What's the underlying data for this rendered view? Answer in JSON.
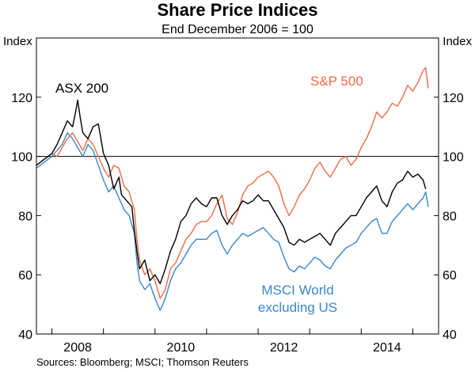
{
  "chart_data": {
    "type": "line",
    "title": "Share Price Indices",
    "subtitle": "End December 2006 = 100",
    "ylabel_left": "Index",
    "ylabel_right": "Index",
    "source": "Sources: Bloomberg; MSCI; Thomson Reuters",
    "xlim": [
      2006.7,
      2014.5
    ],
    "ylim": [
      40,
      140
    ],
    "x_ticks": [
      2008,
      2010,
      2012,
      2014
    ],
    "y_ticks": [
      40,
      60,
      80,
      100,
      120
    ],
    "reference_line": 100,
    "grid": false,
    "series": [
      {
        "name": "ASX 200",
        "color": "#000000",
        "points": [
          [
            2006.7,
            97
          ],
          [
            2006.85,
            99
          ],
          [
            2007.0,
            101
          ],
          [
            2007.1,
            104
          ],
          [
            2007.2,
            108
          ],
          [
            2007.3,
            112
          ],
          [
            2007.4,
            110
          ],
          [
            2007.45,
            114
          ],
          [
            2007.5,
            119
          ],
          [
            2007.55,
            113
          ],
          [
            2007.6,
            108
          ],
          [
            2007.7,
            106
          ],
          [
            2007.8,
            110
          ],
          [
            2007.9,
            111
          ],
          [
            2008.0,
            101
          ],
          [
            2008.1,
            97
          ],
          [
            2008.2,
            89
          ],
          [
            2008.3,
            93
          ],
          [
            2008.35,
            87
          ],
          [
            2008.45,
            85
          ],
          [
            2008.55,
            83
          ],
          [
            2008.6,
            75
          ],
          [
            2008.65,
            68
          ],
          [
            2008.7,
            62
          ],
          [
            2008.8,
            65
          ],
          [
            2008.9,
            58
          ],
          [
            2009.0,
            60
          ],
          [
            2009.1,
            57
          ],
          [
            2009.2,
            62
          ],
          [
            2009.3,
            68
          ],
          [
            2009.4,
            72
          ],
          [
            2009.5,
            78
          ],
          [
            2009.6,
            80
          ],
          [
            2009.7,
            84
          ],
          [
            2009.8,
            86
          ],
          [
            2009.9,
            84
          ],
          [
            2010.0,
            83
          ],
          [
            2010.1,
            86
          ],
          [
            2010.2,
            86
          ],
          [
            2010.3,
            80
          ],
          [
            2010.4,
            77
          ],
          [
            2010.5,
            80
          ],
          [
            2010.6,
            82
          ],
          [
            2010.7,
            85
          ],
          [
            2010.8,
            84
          ],
          [
            2010.9,
            85
          ],
          [
            2011.0,
            87
          ],
          [
            2011.1,
            85
          ],
          [
            2011.2,
            85
          ],
          [
            2011.3,
            82
          ],
          [
            2011.4,
            79
          ],
          [
            2011.5,
            76
          ],
          [
            2011.6,
            71
          ],
          [
            2011.7,
            70
          ],
          [
            2011.8,
            72
          ],
          [
            2011.9,
            71
          ],
          [
            2012.0,
            72
          ],
          [
            2012.1,
            73
          ],
          [
            2012.2,
            74
          ],
          [
            2012.3,
            72
          ],
          [
            2012.4,
            70
          ],
          [
            2012.5,
            74
          ],
          [
            2012.6,
            76
          ],
          [
            2012.7,
            78
          ],
          [
            2012.8,
            80
          ],
          [
            2012.9,
            80
          ],
          [
            2013.0,
            83
          ],
          [
            2013.1,
            86
          ],
          [
            2013.2,
            88
          ],
          [
            2013.3,
            90
          ],
          [
            2013.4,
            85
          ],
          [
            2013.5,
            83
          ],
          [
            2013.6,
            88
          ],
          [
            2013.7,
            91
          ],
          [
            2013.8,
            92
          ],
          [
            2013.9,
            95
          ],
          [
            2014.0,
            93
          ],
          [
            2014.1,
            94
          ],
          [
            2014.2,
            92
          ],
          [
            2014.25,
            89
          ]
        ]
      },
      {
        "name": "S&P 500",
        "color": "#f26b48",
        "points": [
          [
            2006.7,
            97
          ],
          [
            2006.85,
            99
          ],
          [
            2007.0,
            101
          ],
          [
            2007.1,
            100
          ],
          [
            2007.2,
            103
          ],
          [
            2007.3,
            106
          ],
          [
            2007.4,
            108
          ],
          [
            2007.5,
            105
          ],
          [
            2007.6,
            102
          ],
          [
            2007.7,
            106
          ],
          [
            2007.8,
            104
          ],
          [
            2007.9,
            100
          ],
          [
            2008.0,
            96
          ],
          [
            2008.1,
            93
          ],
          [
            2008.2,
            97
          ],
          [
            2008.3,
            96
          ],
          [
            2008.4,
            90
          ],
          [
            2008.5,
            88
          ],
          [
            2008.6,
            82
          ],
          [
            2008.65,
            72
          ],
          [
            2008.7,
            65
          ],
          [
            2008.8,
            60
          ],
          [
            2008.9,
            62
          ],
          [
            2009.0,
            58
          ],
          [
            2009.1,
            52
          ],
          [
            2009.2,
            55
          ],
          [
            2009.3,
            62
          ],
          [
            2009.4,
            64
          ],
          [
            2009.5,
            68
          ],
          [
            2009.6,
            72
          ],
          [
            2009.7,
            74
          ],
          [
            2009.8,
            77
          ],
          [
            2009.9,
            78
          ],
          [
            2010.0,
            78
          ],
          [
            2010.1,
            80
          ],
          [
            2010.2,
            84
          ],
          [
            2010.3,
            87
          ],
          [
            2010.4,
            79
          ],
          [
            2010.5,
            77
          ],
          [
            2010.6,
            81
          ],
          [
            2010.7,
            87
          ],
          [
            2010.8,
            90
          ],
          [
            2010.9,
            91
          ],
          [
            2011.0,
            93
          ],
          [
            2011.1,
            94
          ],
          [
            2011.2,
            95
          ],
          [
            2011.3,
            93
          ],
          [
            2011.4,
            90
          ],
          [
            2011.5,
            84
          ],
          [
            2011.6,
            80
          ],
          [
            2011.7,
            83
          ],
          [
            2011.8,
            87
          ],
          [
            2011.9,
            89
          ],
          [
            2012.0,
            92
          ],
          [
            2012.1,
            96
          ],
          [
            2012.2,
            98
          ],
          [
            2012.3,
            95
          ],
          [
            2012.4,
            93
          ],
          [
            2012.5,
            96
          ],
          [
            2012.6,
            99
          ],
          [
            2012.7,
            100
          ],
          [
            2012.8,
            97
          ],
          [
            2012.9,
            99
          ],
          [
            2013.0,
            103
          ],
          [
            2013.1,
            106
          ],
          [
            2013.2,
            110
          ],
          [
            2013.3,
            115
          ],
          [
            2013.4,
            113
          ],
          [
            2013.5,
            115
          ],
          [
            2013.6,
            118
          ],
          [
            2013.7,
            117
          ],
          [
            2013.8,
            120
          ],
          [
            2013.9,
            124
          ],
          [
            2014.0,
            122
          ],
          [
            2014.1,
            125
          ],
          [
            2014.2,
            129
          ],
          [
            2014.25,
            130
          ],
          [
            2014.3,
            123
          ]
        ]
      },
      {
        "name": "MSCI World excluding US",
        "color": "#3a86c8",
        "points": [
          [
            2006.7,
            96
          ],
          [
            2006.85,
            98
          ],
          [
            2007.0,
            100
          ],
          [
            2007.1,
            102
          ],
          [
            2007.2,
            104
          ],
          [
            2007.3,
            108
          ],
          [
            2007.4,
            106
          ],
          [
            2007.5,
            103
          ],
          [
            2007.6,
            100
          ],
          [
            2007.7,
            104
          ],
          [
            2007.8,
            102
          ],
          [
            2007.9,
            97
          ],
          [
            2008.0,
            92
          ],
          [
            2008.1,
            88
          ],
          [
            2008.2,
            90
          ],
          [
            2008.3,
            86
          ],
          [
            2008.4,
            82
          ],
          [
            2008.5,
            80
          ],
          [
            2008.6,
            74
          ],
          [
            2008.65,
            64
          ],
          [
            2008.7,
            58
          ],
          [
            2008.8,
            55
          ],
          [
            2008.9,
            57
          ],
          [
            2009.0,
            52
          ],
          [
            2009.1,
            48
          ],
          [
            2009.2,
            52
          ],
          [
            2009.3,
            58
          ],
          [
            2009.4,
            62
          ],
          [
            2009.5,
            64
          ],
          [
            2009.6,
            67
          ],
          [
            2009.7,
            70
          ],
          [
            2009.8,
            72
          ],
          [
            2009.9,
            72
          ],
          [
            2010.0,
            72
          ],
          [
            2010.1,
            74
          ],
          [
            2010.2,
            75
          ],
          [
            2010.3,
            70
          ],
          [
            2010.4,
            67
          ],
          [
            2010.5,
            70
          ],
          [
            2010.6,
            72
          ],
          [
            2010.7,
            74
          ],
          [
            2010.8,
            73
          ],
          [
            2010.9,
            74
          ],
          [
            2011.0,
            75
          ],
          [
            2011.1,
            76
          ],
          [
            2011.2,
            74
          ],
          [
            2011.3,
            72
          ],
          [
            2011.4,
            71
          ],
          [
            2011.5,
            66
          ],
          [
            2011.6,
            62
          ],
          [
            2011.7,
            61
          ],
          [
            2011.8,
            63
          ],
          [
            2011.9,
            62
          ],
          [
            2012.0,
            64
          ],
          [
            2012.1,
            66
          ],
          [
            2012.2,
            65
          ],
          [
            2012.3,
            63
          ],
          [
            2012.4,
            62
          ],
          [
            2012.5,
            65
          ],
          [
            2012.6,
            67
          ],
          [
            2012.7,
            69
          ],
          [
            2012.8,
            70
          ],
          [
            2012.9,
            71
          ],
          [
            2013.0,
            74
          ],
          [
            2013.1,
            76
          ],
          [
            2013.2,
            78
          ],
          [
            2013.3,
            79
          ],
          [
            2013.4,
            74
          ],
          [
            2013.5,
            74
          ],
          [
            2013.6,
            78
          ],
          [
            2013.7,
            80
          ],
          [
            2013.8,
            82
          ],
          [
            2013.9,
            84
          ],
          [
            2014.0,
            82
          ],
          [
            2014.1,
            84
          ],
          [
            2014.2,
            86
          ],
          [
            2014.25,
            88
          ],
          [
            2014.3,
            83
          ]
        ]
      }
    ],
    "labels": {
      "asx": "ASX 200",
      "sp": "S&P 500",
      "msci_line1": "MSCI World",
      "msci_line2": "excluding US"
    }
  }
}
